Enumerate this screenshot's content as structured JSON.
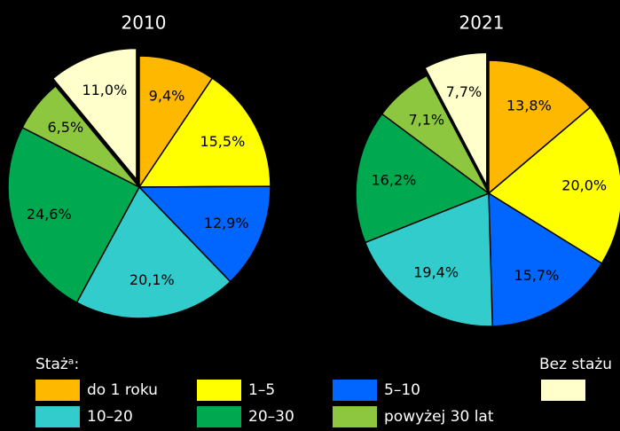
{
  "chart_data": [
    {
      "type": "pie",
      "title": "2010",
      "values": [
        9.4,
        15.5,
        12.9,
        20.1,
        24.6,
        6.5,
        11.0
      ],
      "value_labels": [
        "9,4%",
        "15,5%",
        "12,9%",
        "20,1%",
        "24,6%",
        "6,5%",
        "11,0%"
      ],
      "exploded": 6
    },
    {
      "type": "pie",
      "title": "2021",
      "values": [
        13.8,
        20.0,
        15.7,
        19.4,
        16.2,
        7.1,
        7.7
      ],
      "value_labels": [
        "13,8%",
        "20,0%",
        "15,7%",
        "19,4%",
        "16,2%",
        "7,1%",
        "7,7%"
      ],
      "exploded": 6
    }
  ],
  "legend": {
    "title": "Stażᵃ:",
    "items": [
      {
        "name": "do 1 roku",
        "color": "#ffb800"
      },
      {
        "name": "1–5",
        "color": "#ffff00"
      },
      {
        "name": "5–10",
        "color": "#0066ff"
      },
      {
        "name": "10–20",
        "color": "#33cccc"
      },
      {
        "name": "20–30",
        "color": "#00a94f"
      },
      {
        "name": "powyżej 30 lat",
        "color": "#8dc63f"
      },
      {
        "name": "Bez stażu",
        "color": "#ffffcc"
      }
    ]
  }
}
